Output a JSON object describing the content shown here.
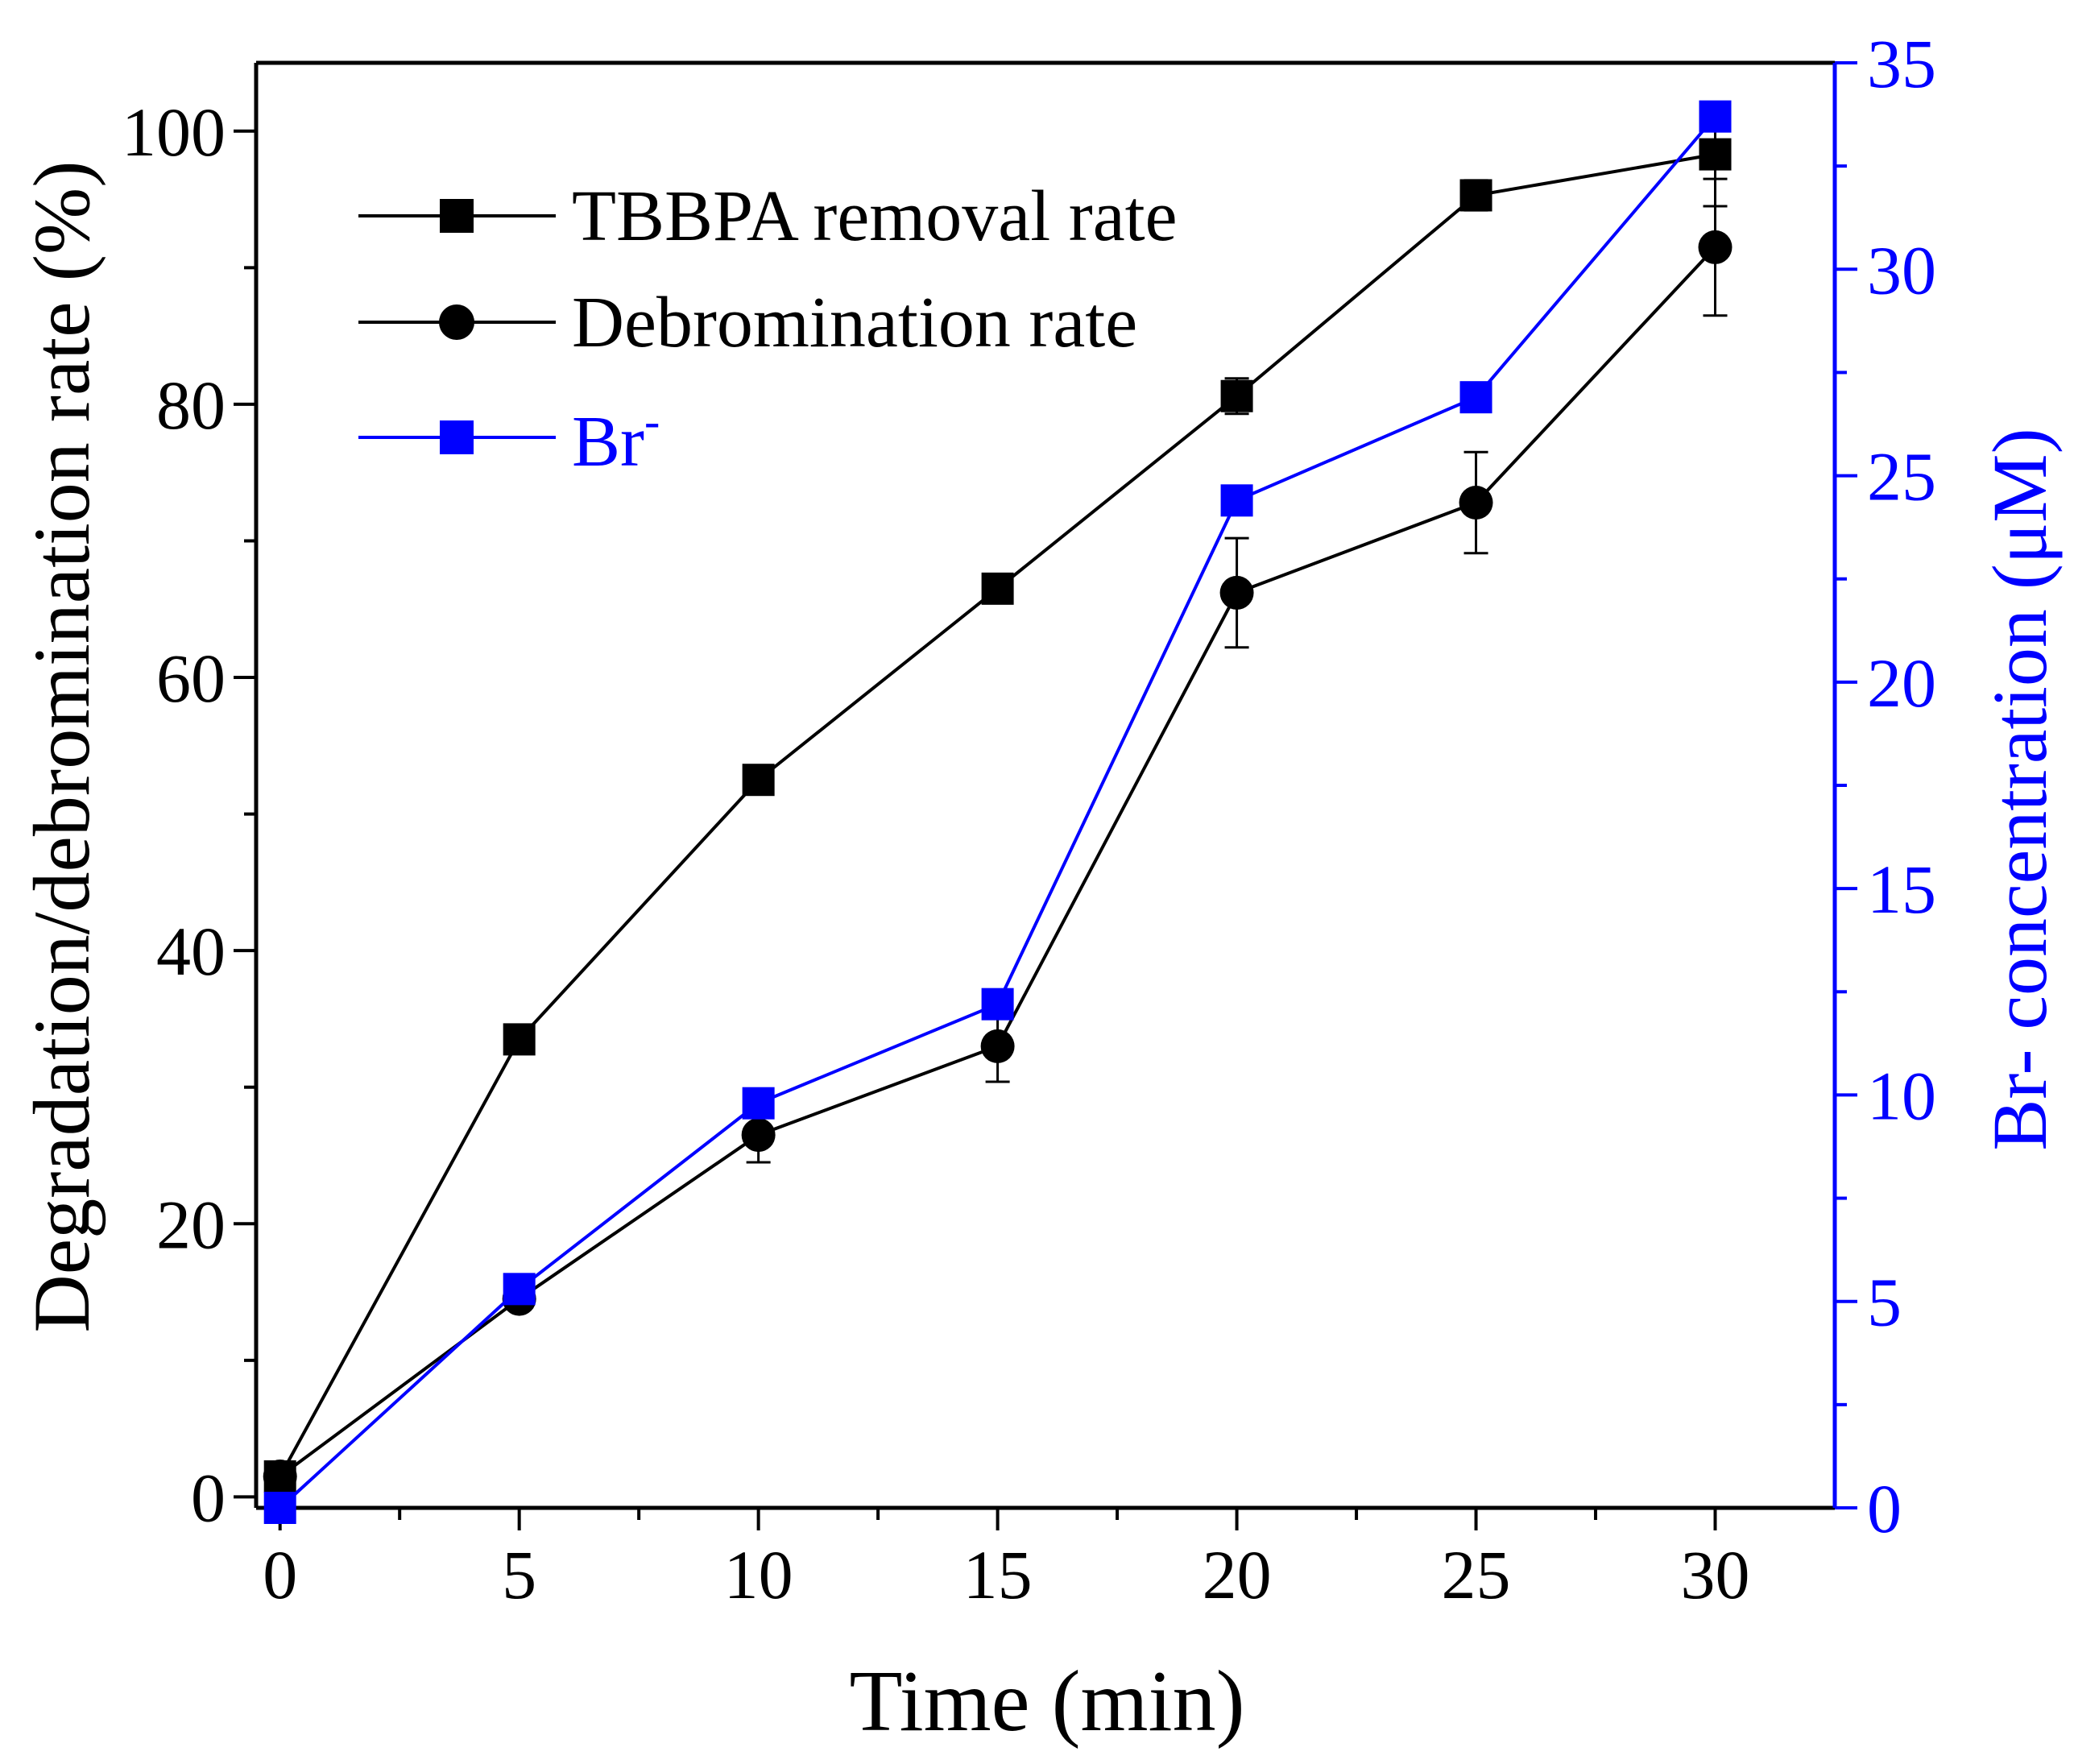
{
  "chart_data": {
    "type": "line",
    "x": [
      0,
      5,
      10,
      15,
      20,
      25,
      30
    ],
    "xlabel": "Time (min)",
    "xlim": [
      -0.5,
      32.5
    ],
    "xticks": [
      0,
      5,
      10,
      15,
      20,
      25,
      30
    ],
    "ylabel_left": "Degradation/debromination rate (%)",
    "ylim_left": [
      -0.8,
      105
    ],
    "yticks_left": [
      0,
      20,
      40,
      60,
      80,
      100
    ],
    "ylabel_right": "Br- concentration (μM)",
    "ylim_right": [
      0,
      35
    ],
    "yticks_right": [
      0,
      5,
      10,
      15,
      20,
      25,
      30,
      35
    ],
    "series": [
      {
        "name": "TBBPA removal rate",
        "axis": "left",
        "marker": "square",
        "color": "#000000",
        "values": [
          1.5,
          33.5,
          52.5,
          66.5,
          80.6,
          95.3,
          98.3
        ],
        "errors": [
          0,
          0,
          0,
          0,
          1.3,
          1.1,
          3.8
        ]
      },
      {
        "name": "Debromination rate",
        "axis": "left",
        "marker": "circle",
        "color": "#000000",
        "values": [
          1.5,
          14.5,
          26.5,
          33.0,
          66.2,
          72.8,
          91.5
        ],
        "errors": [
          0,
          0,
          2.0,
          2.6,
          4.0,
          3.7,
          5.0
        ]
      },
      {
        "name": "Br",
        "name_superscript": "-",
        "axis": "right",
        "marker": "square",
        "color": "#0000ff",
        "values": [
          0.0,
          5.3,
          9.8,
          12.2,
          24.4,
          26.9,
          33.7
        ],
        "errors": [
          0,
          0,
          0,
          0,
          0,
          0,
          0
        ]
      }
    ]
  }
}
